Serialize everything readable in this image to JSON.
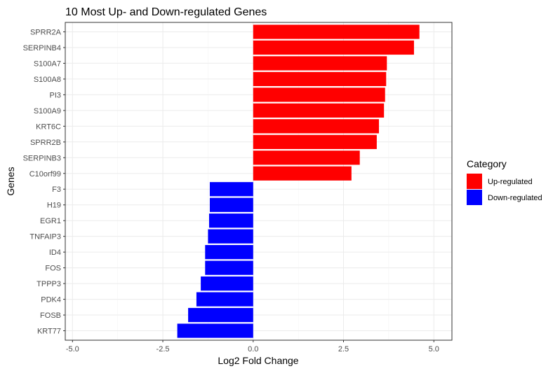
{
  "chart_data": {
    "type": "bar",
    "orientation": "horizontal",
    "title": "10 Most Up- and Down-regulated Genes",
    "xlabel": "Log2 Fold Change",
    "ylabel": "Genes",
    "xlim": [
      -5.2,
      5.5
    ],
    "xticks": [
      -5.0,
      -2.5,
      0.0,
      2.5,
      5.0
    ],
    "xtick_labels": [
      "-5.0",
      "-2.5",
      "0.0",
      "2.5",
      "5.0"
    ],
    "grid": true,
    "legend_position": "right",
    "legend": {
      "title": "Category",
      "entries": [
        {
          "label": "Up-regulated",
          "color": "#FF0000"
        },
        {
          "label": "Down-regulated",
          "color": "#0000FF"
        }
      ]
    },
    "categories": [
      "SPRR2A",
      "SERPINB4",
      "S100A7",
      "S100A8",
      "PI3",
      "S100A9",
      "KRT6C",
      "SPRR2B",
      "SERPINB3",
      "C10orf99",
      "F3",
      "H19",
      "EGR1",
      "TNFAIP3",
      "ID4",
      "FOS",
      "TPPP3",
      "PDK4",
      "FOSB",
      "KRT77"
    ],
    "values": [
      4.6,
      4.45,
      3.7,
      3.68,
      3.65,
      3.62,
      3.48,
      3.42,
      2.95,
      2.72,
      -1.2,
      -1.2,
      -1.22,
      -1.25,
      -1.33,
      -1.33,
      -1.45,
      -1.57,
      -1.8,
      -2.1
    ],
    "bar_categories": [
      "Up-regulated",
      "Up-regulated",
      "Up-regulated",
      "Up-regulated",
      "Up-regulated",
      "Up-regulated",
      "Up-regulated",
      "Up-regulated",
      "Up-regulated",
      "Up-regulated",
      "Down-regulated",
      "Down-regulated",
      "Down-regulated",
      "Down-regulated",
      "Down-regulated",
      "Down-regulated",
      "Down-regulated",
      "Down-regulated",
      "Down-regulated",
      "Down-regulated"
    ]
  }
}
